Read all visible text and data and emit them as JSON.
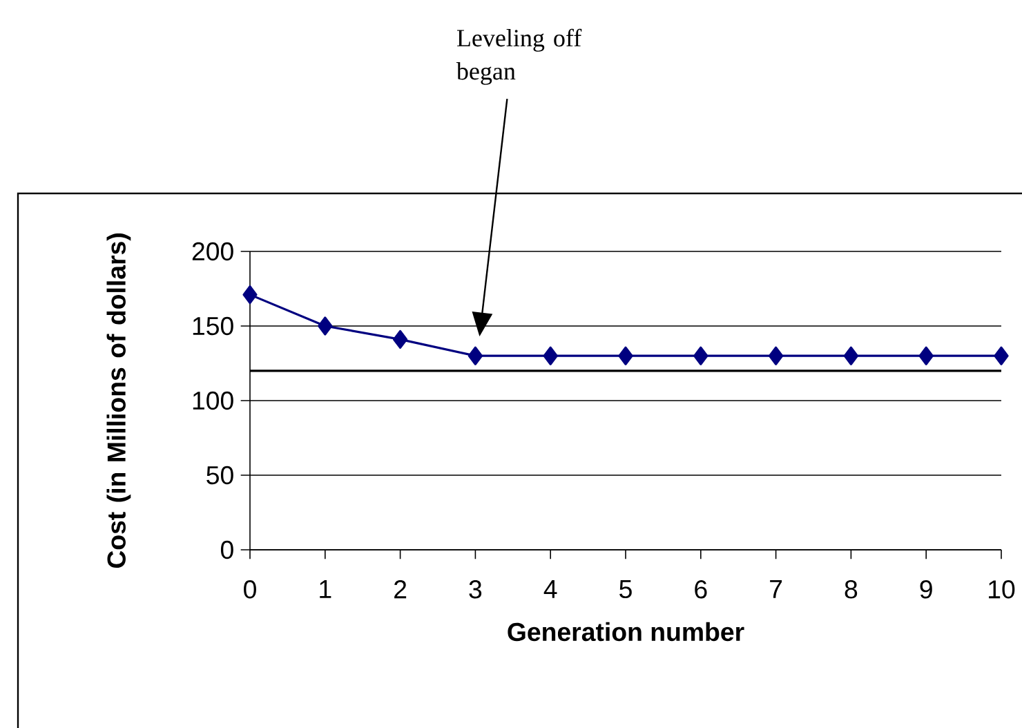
{
  "chart_data": {
    "type": "line",
    "xlabel": "Generation number",
    "ylabel": "Cost (in Millions of dollars)",
    "x": [
      0,
      1,
      2,
      3,
      4,
      5,
      6,
      7,
      8,
      9,
      10
    ],
    "series": [
      {
        "color": "#000080",
        "values": [
          171,
          150,
          141,
          130,
          130,
          130,
          130,
          130,
          130,
          130,
          130
        ]
      }
    ],
    "xlim": [
      0,
      10
    ],
    "ylim": [
      0,
      200
    ],
    "xticks": [
      0,
      1,
      2,
      3,
      4,
      5,
      6,
      7,
      8,
      9,
      10
    ],
    "yticks": [
      0,
      50,
      100,
      150,
      200
    ],
    "grid": "y",
    "marker": "diamond",
    "line_style": "solid",
    "ref_lines": [
      {
        "axis": "y",
        "value": 120,
        "color": "#000000"
      }
    ],
    "annotations": [
      "Leveling off began"
    ]
  }
}
